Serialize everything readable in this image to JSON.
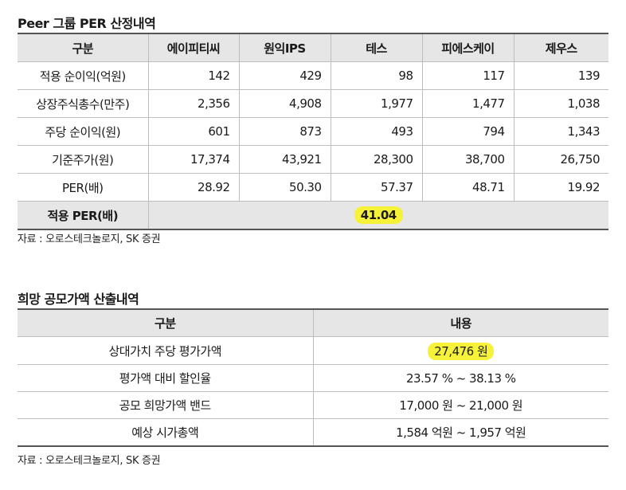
{
  "per_section": {
    "title": "Peer 그룹 PER 산정내역",
    "headers": [
      "구분",
      "에이피티씨",
      "원익IPS",
      "테스",
      "피에스케이",
      "제우스"
    ],
    "rows": [
      {
        "label": "적용 순이익(억원)",
        "values": [
          "142",
          "429",
          "98",
          "117",
          "139"
        ]
      },
      {
        "label": "상장주식총수(만주)",
        "values": [
          "2,356",
          "4,908",
          "1,977",
          "1,477",
          "1,038"
        ]
      },
      {
        "label": "주당 순이익(원)",
        "values": [
          "601",
          "873",
          "493",
          "794",
          "1,343"
        ]
      },
      {
        "label": "기준주가(원)",
        "values": [
          "17,374",
          "43,921",
          "28,300",
          "38,700",
          "26,750"
        ]
      },
      {
        "label": "PER(배)",
        "values": [
          "28.92",
          "50.30",
          "57.37",
          "48.71",
          "19.92"
        ]
      }
    ],
    "applied_per": {
      "label": "적용 PER(배)",
      "value": "41.04"
    },
    "source": "자료 : 오로스테크놀로지, SK 증권"
  },
  "price_section": {
    "title": "희망 공모가액 산출내역",
    "headers": [
      "구분",
      "내용"
    ],
    "rows": [
      {
        "label": "상대가치 주당 평가가액",
        "value": "27,476 원"
      },
      {
        "label": "평가액 대비 할인율",
        "value": "23.57 % ~ 38.13 %"
      },
      {
        "label": "공모 희망가액 밴드",
        "value": "17,000 원 ~ 21,000 원"
      },
      {
        "label": "예상 시가총액",
        "value": "1,584 억원 ~ 1,957 억원"
      }
    ],
    "source": "자료 : 오로스테크놀로지, SK 증권"
  },
  "colors": {
    "highlight": "#f6f23a",
    "header_bg": "#e6e6e6"
  }
}
